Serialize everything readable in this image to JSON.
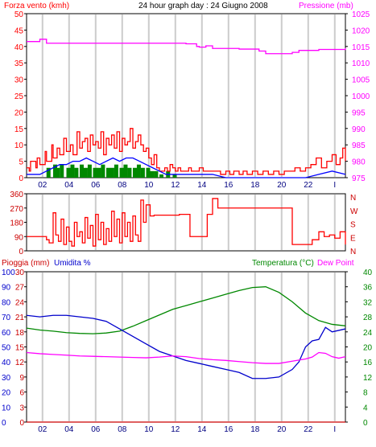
{
  "chart_data": [
    {
      "type": "line",
      "title": "24 hour graph day : 24 Giugno 2008",
      "left_label": "Forza vento (kmh)",
      "right_label": "Pressione (mb)",
      "x_ticks": [
        "02",
        "04",
        "06",
        "08",
        "10",
        "12",
        "14",
        "16",
        "18",
        "20",
        "22",
        "I"
      ],
      "y_left_ticks": [
        0,
        5,
        10,
        15,
        20,
        25,
        30,
        35,
        40,
        45,
        50
      ],
      "y_left_range": [
        0,
        50
      ],
      "y_right_ticks": [
        975,
        980,
        985,
        990,
        995,
        1000,
        1005,
        1010,
        1015,
        1020,
        1025
      ],
      "y_right_range": [
        975,
        1025
      ],
      "colors": {
        "wind": "#ff0000",
        "gust": "#ff0000",
        "avg": "#0000ff",
        "bars": "#008800",
        "pressure": "#ff00ff",
        "axis_left": "#ff0000",
        "axis_right": "#ff00ff"
      },
      "series": [
        {
          "name": "pressure",
          "axis": "right",
          "x": [
            0,
            0.5,
            1,
            1.4,
            1.5,
            2,
            4,
            6,
            8,
            10,
            12,
            12.8,
            13,
            13.5,
            14,
            16,
            17.5,
            18,
            19,
            20,
            20.5,
            22,
            24
          ],
          "y": [
            1016.5,
            1016.5,
            1017.2,
            1017.2,
            1016,
            1016,
            1016,
            1016,
            1016,
            1016,
            1015.8,
            1015,
            1014.8,
            1015.2,
            1014.4,
            1014.2,
            1013.6,
            1012.8,
            1012.8,
            1013.2,
            1013.8,
            1014.1,
            1014.5
          ]
        },
        {
          "name": "gust",
          "axis": "left",
          "x": [
            0,
            0.2,
            0.3,
            0.7,
            0.8,
            1,
            1.4,
            1.5,
            1.9,
            2,
            2.3,
            2.5,
            2.8,
            3,
            3.3,
            3.5,
            3.8,
            4,
            4.2,
            4.4,
            4.6,
            4.8,
            5,
            5.2,
            5.4,
            5.6,
            5.8,
            6,
            6.2,
            6.4,
            6.6,
            6.8,
            7,
            7.2,
            7.4,
            7.6,
            7.8,
            8,
            8.2,
            8.4,
            8.6,
            8.8,
            9,
            9.2,
            9.4,
            9.6,
            9.8,
            10,
            10.2,
            10.4,
            10.6,
            10.8,
            11,
            11.2,
            11.4,
            11.6,
            12,
            12.2,
            12.4,
            12.8,
            13,
            13.3,
            13.6,
            14,
            14.3,
            14.6,
            15,
            15.3,
            15.6,
            16,
            16.3,
            16.6,
            17,
            17.4,
            17.8,
            18.2,
            18.6,
            19,
            19.4,
            19.8,
            20.2,
            20.6,
            21,
            21.4,
            21.8,
            22.2,
            22.6,
            23,
            23.3,
            23.6,
            23.8,
            24
          ],
          "y": [
            3,
            2,
            5,
            3,
            6,
            4,
            8,
            5,
            10,
            6,
            9,
            7,
            12,
            8,
            10,
            7,
            14,
            9,
            11,
            12,
            8,
            13,
            10,
            11,
            9,
            14,
            7,
            12,
            10,
            13,
            9,
            14,
            8,
            12,
            10,
            11,
            15,
            9,
            11,
            13,
            10,
            8,
            9,
            6,
            4,
            7,
            3,
            2,
            2,
            3,
            2,
            4,
            3,
            2,
            3,
            2,
            2,
            3,
            2,
            2,
            3,
            2,
            2,
            2,
            2,
            1,
            2,
            1,
            2,
            1,
            2,
            1,
            2,
            1,
            2,
            1,
            2,
            1,
            2,
            2,
            3,
            2,
            3,
            4,
            6,
            3,
            5,
            7,
            4,
            6,
            9,
            5
          ]
        },
        {
          "name": "avg",
          "axis": "left",
          "x": [
            0,
            1,
            1.5,
            2,
            2.5,
            3,
            3.5,
            4,
            4.5,
            5,
            5.5,
            6,
            6.5,
            7,
            7.5,
            8,
            8.5,
            9,
            9.5,
            10,
            10.5,
            11,
            12,
            13,
            14,
            15,
            16,
            17,
            18,
            19,
            20,
            21,
            22,
            23,
            24
          ],
          "y": [
            1,
            1,
            2,
            3,
            4,
            4,
            5,
            5,
            6,
            5,
            4,
            5,
            6,
            5,
            6,
            6,
            5,
            4,
            3,
            2,
            1,
            1,
            1,
            1,
            1,
            0,
            0,
            0,
            0,
            0,
            0,
            0,
            1,
            2,
            1
          ]
        }
      ],
      "bars": {
        "name": "wind speed",
        "axis": "left",
        "x": [
          1.5,
          2,
          2.2,
          2.5,
          3,
          3.3,
          3.6,
          4,
          4.3,
          4.6,
          5,
          5.3,
          5.6,
          6,
          6.3,
          6.6,
          7,
          7.3,
          7.6,
          8,
          8.3,
          8.6,
          9,
          9.3,
          9.6,
          10,
          10.5,
          11
        ],
        "y": [
          3,
          4,
          3,
          4,
          3,
          4,
          3,
          4,
          3,
          4,
          3,
          3,
          4,
          3,
          3,
          4,
          3,
          4,
          3,
          3,
          4,
          3,
          3,
          2,
          2,
          1,
          2,
          1
        ]
      }
    },
    {
      "type": "step",
      "name": "wind direction",
      "y_left_ticks": [
        0,
        90,
        180,
        270,
        360
      ],
      "y_left_range": [
        0,
        360
      ],
      "right_labels": [
        "N",
        "W",
        "S",
        "E",
        "N"
      ],
      "x_ticks": [
        "02",
        "04",
        "06",
        "08",
        "10",
        "12",
        "14",
        "16",
        "18",
        "20",
        "22",
        "I"
      ],
      "x": [
        0,
        1.5,
        1.7,
        2,
        2.2,
        2.4,
        2.6,
        2.8,
        3,
        3.2,
        3.4,
        3.6,
        3.8,
        4,
        4.2,
        4.4,
        4.6,
        4.8,
        5,
        5.2,
        5.4,
        5.6,
        5.8,
        6,
        6.2,
        6.4,
        6.6,
        6.8,
        7,
        7.2,
        7.4,
        7.6,
        7.8,
        8,
        8.2,
        8.4,
        8.6,
        8.8,
        9,
        9.3,
        9.6,
        10,
        11.5,
        12,
        12.3,
        13,
        13.6,
        14,
        14.4,
        15,
        17,
        19,
        20,
        20.2,
        21,
        21.5,
        22,
        22.4,
        22.8,
        23.2,
        23.6,
        24
      ],
      "y": [
        90,
        70,
        50,
        240,
        100,
        60,
        200,
        40,
        150,
        60,
        30,
        180,
        90,
        120,
        50,
        210,
        80,
        160,
        30,
        230,
        70,
        180,
        40,
        140,
        60,
        250,
        90,
        200,
        50,
        240,
        90,
        180,
        60,
        220,
        100,
        60,
        320,
        180,
        290,
        220,
        225,
        225,
        230,
        230,
        90,
        90,
        230,
        330,
        270,
        270,
        270,
        270,
        40,
        40,
        40,
        70,
        120,
        90,
        100,
        80,
        120,
        40
      ]
    },
    {
      "type": "line",
      "left_label_1": "Pioggia (mm)",
      "left_label_2": "Umidita %",
      "right_label_1": "Temperatura (°C)",
      "right_label_2": "Dew Point",
      "y_humidity_ticks": [
        0,
        10,
        20,
        30,
        40,
        50,
        60,
        70,
        80,
        90,
        100
      ],
      "y_rain_ticks": [
        0,
        3,
        6,
        9,
        12,
        15,
        18,
        21,
        24,
        27,
        30
      ],
      "y_temp_ticks": [
        0,
        4,
        8,
        12,
        16,
        20,
        24,
        28,
        32,
        36,
        40
      ],
      "x_ticks": [
        "02",
        "04",
        "06",
        "08",
        "10",
        "12",
        "14",
        "16",
        "18",
        "20",
        "22",
        "I"
      ],
      "colors": {
        "humidity": "#0000cc",
        "rain": "#cc0000",
        "temperature": "#008800",
        "dewpoint": "#ff00ff"
      },
      "series": [
        {
          "name": "temperature",
          "axis": "temp",
          "x": [
            0,
            1,
            2,
            3,
            4,
            5,
            6,
            7,
            8,
            9,
            10,
            11,
            12,
            13,
            14,
            15,
            16,
            17,
            18,
            19,
            20,
            21,
            22,
            23,
            24
          ],
          "y": [
            25,
            24.5,
            24.2,
            23.8,
            23.6,
            23.5,
            23.7,
            24.2,
            25.5,
            27,
            28.5,
            30,
            31,
            32,
            33,
            34,
            35,
            35.8,
            36,
            34.5,
            32,
            29,
            27,
            26,
            25.6
          ]
        },
        {
          "name": "humidity",
          "axis": "humidity",
          "x": [
            0,
            1,
            2,
            3,
            4,
            5,
            6,
            7,
            8,
            9,
            10,
            11,
            12,
            13,
            14,
            15,
            16,
            17,
            18,
            19,
            20,
            20.5,
            21,
            21.5,
            22,
            22.5,
            23,
            23.5,
            24
          ],
          "y": [
            71,
            70,
            71,
            71,
            70,
            69,
            67,
            62,
            57,
            52,
            47,
            44,
            41,
            39,
            37,
            35,
            33,
            29,
            29,
            30,
            35,
            40,
            50,
            54,
            55,
            63,
            60,
            61,
            62
          ]
        },
        {
          "name": "dewpoint",
          "axis": "temp",
          "x": [
            0,
            1,
            2,
            3,
            4,
            5,
            6,
            7,
            8,
            9,
            10,
            11,
            12,
            13,
            14,
            15,
            16,
            17,
            18,
            19,
            20,
            21,
            21.5,
            22,
            22.5,
            23,
            23.5,
            24
          ],
          "y": [
            18.5,
            18.2,
            18,
            17.8,
            17.6,
            17.5,
            17.4,
            17.3,
            17.2,
            17.1,
            17.3,
            17.6,
            17.4,
            16.9,
            16.6,
            16.4,
            16.1,
            15.8,
            15.6,
            15.6,
            16.2,
            16.8,
            17.3,
            18.5,
            18.3,
            17.4,
            17,
            17.4
          ]
        },
        {
          "name": "rain",
          "axis": "rain",
          "x": [
            0,
            24
          ],
          "y": [
            0,
            0
          ]
        }
      ]
    }
  ]
}
